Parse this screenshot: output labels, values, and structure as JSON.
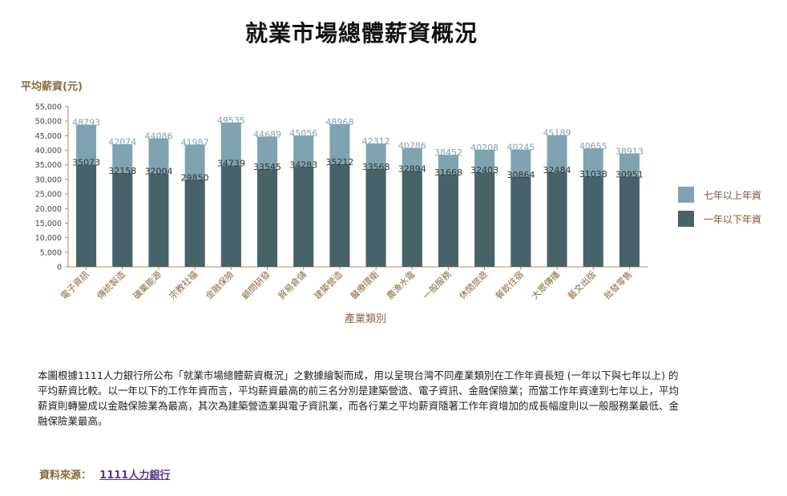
{
  "page": {
    "title": "就業市場總體薪資概況",
    "description": "本圖根據1111人力銀行所公布「就業市場總體薪資概況」之數據繪製而成，用以呈現台灣不同產業類別在工作年資長短 (一年以下與七年以上) 的平均薪資比較。以一年以下的工作年資而言，平均薪資最高的前三名分別是建築營造、電子資訊、金融保險業；而當工作年資達到七年以上，平均薪資則轉變成以金融保險業為最高，其次為建築營造業與電子資訊業，而各行業之平均薪資隨著工作年資增加的成長幅度則以一般服務業最低、金融保險業最高。",
    "source_label": "資料來源：",
    "source_link": "1111人力銀行"
  },
  "chart_data": {
    "type": "bar",
    "title": "",
    "ylabel": "平均薪資(元)",
    "xlabel": "產業類別",
    "ylim": [
      0,
      55000
    ],
    "yticks": [
      0,
      5000,
      10000,
      15000,
      20000,
      25000,
      30000,
      35000,
      40000,
      45000,
      50000,
      55000
    ],
    "ytick_labels": [
      "0",
      "5,000",
      "10,000",
      "15,000",
      "20,000",
      "25,000",
      "30,000",
      "35,000",
      "40,000",
      "45,000",
      "50,000",
      "55,000"
    ],
    "categories": [
      "電子資訊",
      "傳統製造",
      "礦業能源",
      "宗教社福",
      "金融保險",
      "顧問研發",
      "貿易倉儲",
      "建築營造",
      "醫療環衛",
      "農漁水電",
      "一般服務",
      "休閒旅遊",
      "餐飲住宿",
      "大眾傳播",
      "藝文出版",
      "批發零售"
    ],
    "series": [
      {
        "name": "一年以下年資",
        "color": "#476268",
        "values": [
          35073,
          32158,
          32004,
          29850,
          34739,
          33545,
          34283,
          35212,
          33568,
          32894,
          31668,
          32403,
          30864,
          32484,
          31038,
          30951
        ]
      },
      {
        "name": "七年以上年資",
        "color": "#7fa3b1",
        "values": [
          48793,
          42074,
          44086,
          41987,
          49535,
          44689,
          45056,
          48968,
          42312,
          40786,
          38452,
          40208,
          40245,
          45189,
          40655,
          38913
        ]
      }
    ],
    "legend": "right",
    "grid": false,
    "stacked_overlay": true
  },
  "style": {
    "axis_color": "#b38a5a",
    "label_color": "#8a6a3a",
    "value_label_color_top": "#7fa3b1",
    "value_label_color_low": "#333333"
  }
}
